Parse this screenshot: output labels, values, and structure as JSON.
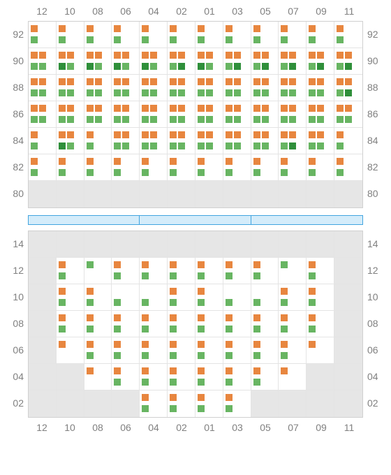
{
  "colors": {
    "orange": "#e8863f",
    "lightGreen": "#68b562",
    "darkGreen": "#2f8f3a",
    "inactive": "#e6e6e6",
    "gridBorder": "#d0d0d0",
    "cellBorder": "#e4e4e4",
    "text": "#808080",
    "dividerBorder": "#42a5e0",
    "dividerFill": "#d4ecfa"
  },
  "columns": [
    "12",
    "10",
    "08",
    "06",
    "04",
    "02",
    "01",
    "03",
    "05",
    "07",
    "09",
    "11"
  ],
  "upper": {
    "rows": [
      "92",
      "90",
      "88",
      "86",
      "84",
      "82",
      "80"
    ],
    "cells": [
      [
        {
          "top": [
            "O"
          ],
          "bot": [
            "L"
          ]
        },
        {
          "top": [
            "O"
          ],
          "bot": [
            "L"
          ]
        },
        {
          "top": [
            "O"
          ],
          "bot": [
            "L"
          ]
        },
        {
          "top": [
            "O"
          ],
          "bot": [
            "L"
          ]
        },
        {
          "top": [
            "O"
          ],
          "bot": [
            "L"
          ]
        },
        {
          "top": [
            "O"
          ],
          "bot": [
            "L"
          ]
        },
        {
          "top": [
            "O"
          ],
          "bot": [
            "L"
          ]
        },
        {
          "top": [
            "O"
          ],
          "bot": [
            "L"
          ]
        },
        {
          "top": [
            "O"
          ],
          "bot": [
            "L"
          ]
        },
        {
          "top": [
            "O"
          ],
          "bot": [
            "L"
          ]
        },
        {
          "top": [
            "O"
          ],
          "bot": [
            "L"
          ]
        },
        {
          "top": [
            "O"
          ],
          "bot": [
            "L"
          ]
        }
      ],
      [
        {
          "top": [
            "O",
            "O"
          ],
          "bot": [
            "L",
            "L"
          ]
        },
        {
          "top": [
            "O",
            "O"
          ],
          "bot": [
            "D",
            "L"
          ]
        },
        {
          "top": [
            "O",
            "O"
          ],
          "bot": [
            "D",
            "L"
          ]
        },
        {
          "top": [
            "O",
            "O"
          ],
          "bot": [
            "D",
            "L"
          ]
        },
        {
          "top": [
            "O",
            "O"
          ],
          "bot": [
            "D",
            "L"
          ]
        },
        {
          "top": [
            "O",
            "O"
          ],
          "bot": [
            "L",
            "D"
          ]
        },
        {
          "top": [
            "O",
            "O"
          ],
          "bot": [
            "D",
            "L"
          ]
        },
        {
          "top": [
            "O",
            "O"
          ],
          "bot": [
            "L",
            "D"
          ]
        },
        {
          "top": [
            "O",
            "O"
          ],
          "bot": [
            "L",
            "D"
          ]
        },
        {
          "top": [
            "O",
            "O"
          ],
          "bot": [
            "L",
            "D"
          ]
        },
        {
          "top": [
            "O",
            "O"
          ],
          "bot": [
            "L",
            "D"
          ]
        },
        {
          "top": [
            "O",
            "O"
          ],
          "bot": [
            "L",
            "D"
          ]
        }
      ],
      [
        {
          "top": [
            "O",
            "O"
          ],
          "bot": [
            "L",
            "L"
          ]
        },
        {
          "top": [
            "O",
            "O"
          ],
          "bot": [
            "L",
            "L"
          ]
        },
        {
          "top": [
            "O",
            "O"
          ],
          "bot": [
            "L",
            "L"
          ]
        },
        {
          "top": [
            "O",
            "O"
          ],
          "bot": [
            "L",
            "L"
          ]
        },
        {
          "top": [
            "O",
            "O"
          ],
          "bot": [
            "L",
            "L"
          ]
        },
        {
          "top": [
            "O",
            "O"
          ],
          "bot": [
            "L",
            "L"
          ]
        },
        {
          "top": [
            "O",
            "O"
          ],
          "bot": [
            "L",
            "L"
          ]
        },
        {
          "top": [
            "O",
            "O"
          ],
          "bot": [
            "L",
            "L"
          ]
        },
        {
          "top": [
            "O",
            "O"
          ],
          "bot": [
            "L",
            "L"
          ]
        },
        {
          "top": [
            "O",
            "O"
          ],
          "bot": [
            "L",
            "L"
          ]
        },
        {
          "top": [
            "O",
            "O"
          ],
          "bot": [
            "L",
            "L"
          ]
        },
        {
          "top": [
            "O",
            "O"
          ],
          "bot": [
            "L",
            "D"
          ]
        }
      ],
      [
        {
          "top": [
            "O",
            "O"
          ],
          "bot": [
            "L",
            "L"
          ]
        },
        {
          "top": [
            "O",
            "O"
          ],
          "bot": [
            "L",
            "L"
          ]
        },
        {
          "top": [
            "O",
            "O"
          ],
          "bot": [
            "L",
            "L"
          ]
        },
        {
          "top": [
            "O",
            "O"
          ],
          "bot": [
            "L",
            "L"
          ]
        },
        {
          "top": [
            "O",
            "O"
          ],
          "bot": [
            "L",
            "L"
          ]
        },
        {
          "top": [
            "O",
            "O"
          ],
          "bot": [
            "L",
            "L"
          ]
        },
        {
          "top": [
            "O",
            "O"
          ],
          "bot": [
            "L",
            "L"
          ]
        },
        {
          "top": [
            "O",
            "O"
          ],
          "bot": [
            "L",
            "L"
          ]
        },
        {
          "top": [
            "O",
            "O"
          ],
          "bot": [
            "L",
            "L"
          ]
        },
        {
          "top": [
            "O",
            "O"
          ],
          "bot": [
            "L",
            "L"
          ]
        },
        {
          "top": [
            "O",
            "O"
          ],
          "bot": [
            "L",
            "L"
          ]
        },
        {
          "top": [
            "O",
            "O"
          ],
          "bot": [
            "L",
            "L"
          ]
        }
      ],
      [
        {
          "top": [
            "O"
          ],
          "bot": [
            "L"
          ]
        },
        {
          "top": [
            "O",
            "O"
          ],
          "bot": [
            "D",
            "L"
          ]
        },
        {
          "top": [
            "O"
          ],
          "bot": [
            "L"
          ]
        },
        {
          "top": [
            "O",
            "O"
          ],
          "bot": [
            "L",
            "L"
          ]
        },
        {
          "top": [
            "O",
            "O"
          ],
          "bot": [
            "L",
            "L"
          ]
        },
        {
          "top": [
            "O",
            "O"
          ],
          "bot": [
            "L",
            "L"
          ]
        },
        {
          "top": [
            "O",
            "O"
          ],
          "bot": [
            "L",
            "L"
          ]
        },
        {
          "top": [
            "O",
            "O"
          ],
          "bot": [
            "L",
            "L"
          ]
        },
        {
          "top": [
            "O",
            "O"
          ],
          "bot": [
            "L",
            "L"
          ]
        },
        {
          "top": [
            "O",
            "O"
          ],
          "bot": [
            "L",
            "D"
          ]
        },
        {
          "top": [
            "O",
            "O"
          ],
          "bot": [
            "L",
            "L"
          ]
        },
        {
          "top": [
            "O"
          ],
          "bot": [
            "L"
          ]
        }
      ],
      [
        {
          "top": [
            "O"
          ],
          "bot": [
            "L"
          ]
        },
        {
          "top": [
            "O"
          ],
          "bot": [
            "L"
          ]
        },
        {
          "top": [
            "O"
          ],
          "bot": [
            "L"
          ]
        },
        {
          "top": [
            "O"
          ],
          "bot": [
            "L"
          ]
        },
        {
          "top": [
            "O"
          ],
          "bot": [
            "L"
          ]
        },
        {
          "top": [
            "O"
          ],
          "bot": [
            "L"
          ]
        },
        {
          "top": [
            "O"
          ],
          "bot": [
            "L"
          ]
        },
        {
          "top": [
            "O"
          ],
          "bot": [
            "L"
          ]
        },
        {
          "top": [
            "O"
          ],
          "bot": [
            "L"
          ]
        },
        {
          "top": [
            "O"
          ],
          "bot": [
            "L"
          ]
        },
        {
          "top": [
            "O"
          ],
          "bot": [
            "L"
          ]
        },
        {
          "top": [
            "O"
          ],
          "bot": [
            "L"
          ]
        }
      ],
      [
        null,
        null,
        null,
        null,
        null,
        null,
        null,
        null,
        null,
        null,
        null,
        null
      ]
    ]
  },
  "lower": {
    "rows": [
      "14",
      "12",
      "10",
      "08",
      "06",
      "04",
      "02"
    ],
    "cells": [
      [
        null,
        null,
        null,
        null,
        null,
        null,
        null,
        null,
        null,
        null,
        null,
        null
      ],
      [
        null,
        {
          "top": [
            "O"
          ],
          "bot": [
            "L"
          ]
        },
        {
          "top": [
            "L"
          ],
          "bot": []
        },
        {
          "top": [
            "O"
          ],
          "bot": [
            "L"
          ]
        },
        {
          "top": [
            "O"
          ],
          "bot": [
            "L"
          ]
        },
        {
          "top": [
            "O"
          ],
          "bot": [
            "L"
          ]
        },
        {
          "top": [
            "O"
          ],
          "bot": [
            "L"
          ]
        },
        {
          "top": [
            "O"
          ],
          "bot": [
            "L"
          ]
        },
        {
          "top": [
            "O"
          ],
          "bot": [
            "L"
          ]
        },
        {
          "top": [
            "L"
          ],
          "bot": []
        },
        {
          "top": [
            "O"
          ],
          "bot": [
            "L"
          ]
        },
        null
      ],
      [
        null,
        {
          "top": [
            "O"
          ],
          "bot": [
            "L"
          ]
        },
        {
          "top": [
            "O"
          ],
          "bot": [
            "L"
          ]
        },
        {
          "top": [],
          "bot": [
            "L"
          ]
        },
        {
          "top": [],
          "bot": [
            "L"
          ]
        },
        {
          "top": [
            "O"
          ],
          "bot": [
            "L"
          ]
        },
        {
          "top": [
            "O"
          ],
          "bot": [
            "L"
          ]
        },
        {
          "top": [],
          "bot": [
            "L"
          ]
        },
        {
          "top": [],
          "bot": [
            "L"
          ]
        },
        {
          "top": [
            "O"
          ],
          "bot": [
            "L"
          ]
        },
        {
          "top": [
            "O"
          ],
          "bot": [
            "L"
          ]
        },
        null
      ],
      [
        null,
        {
          "top": [
            "O"
          ],
          "bot": [
            "L"
          ]
        },
        {
          "top": [
            "O"
          ],
          "bot": [
            "L"
          ]
        },
        {
          "top": [
            "O"
          ],
          "bot": [
            "L"
          ]
        },
        {
          "top": [
            "O"
          ],
          "bot": [
            "L"
          ]
        },
        {
          "top": [
            "O"
          ],
          "bot": [
            "L"
          ]
        },
        {
          "top": [
            "O"
          ],
          "bot": [
            "L"
          ]
        },
        {
          "top": [
            "O"
          ],
          "bot": [
            "L"
          ]
        },
        {
          "top": [
            "O"
          ],
          "bot": [
            "L"
          ]
        },
        {
          "top": [
            "O"
          ],
          "bot": [
            "L"
          ]
        },
        {
          "top": [
            "O"
          ],
          "bot": [
            "L"
          ]
        },
        null
      ],
      [
        null,
        {
          "top": [
            "O"
          ],
          "bot": []
        },
        {
          "top": [
            "O"
          ],
          "bot": [
            "L"
          ]
        },
        {
          "top": [
            "O"
          ],
          "bot": [
            "L"
          ]
        },
        {
          "top": [
            "O"
          ],
          "bot": [
            "L"
          ]
        },
        {
          "top": [
            "O"
          ],
          "bot": [
            "L"
          ]
        },
        {
          "top": [
            "O"
          ],
          "bot": [
            "L"
          ]
        },
        {
          "top": [
            "O"
          ],
          "bot": [
            "L"
          ]
        },
        {
          "top": [
            "O"
          ],
          "bot": [
            "L"
          ]
        },
        {
          "top": [
            "O"
          ],
          "bot": [
            "L"
          ]
        },
        {
          "top": [
            "O"
          ],
          "bot": []
        },
        null
      ],
      [
        null,
        null,
        {
          "top": [
            "O"
          ],
          "bot": []
        },
        {
          "top": [
            "O"
          ],
          "bot": [
            "L"
          ]
        },
        {
          "top": [
            "O"
          ],
          "bot": [
            "L"
          ]
        },
        {
          "top": [
            "O"
          ],
          "bot": [
            "L"
          ]
        },
        {
          "top": [
            "O"
          ],
          "bot": [
            "L"
          ]
        },
        {
          "top": [
            "O"
          ],
          "bot": [
            "L"
          ]
        },
        {
          "top": [
            "O"
          ],
          "bot": [
            "L"
          ]
        },
        {
          "top": [
            "O"
          ],
          "bot": []
        },
        null,
        null
      ],
      [
        null,
        null,
        null,
        null,
        {
          "top": [
            "O"
          ],
          "bot": [
            "L"
          ]
        },
        {
          "top": [
            "O"
          ],
          "bot": [
            "L"
          ]
        },
        {
          "top": [
            "O"
          ],
          "bot": [
            "L"
          ]
        },
        {
          "top": [
            "O"
          ],
          "bot": [
            "L"
          ]
        },
        null,
        null,
        null,
        null
      ]
    ]
  }
}
